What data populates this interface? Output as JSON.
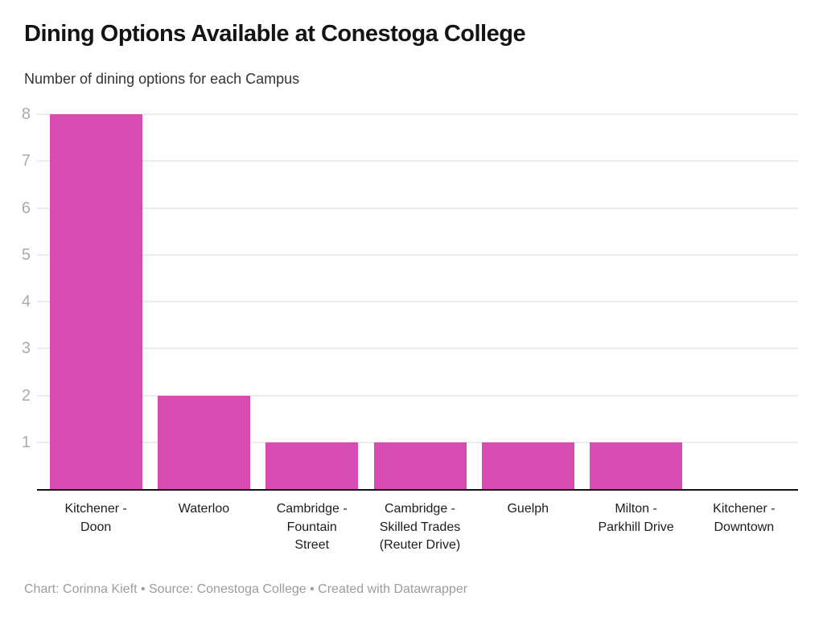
{
  "header": {
    "title": "Dining Options Available at Conestoga College",
    "subtitle": "Number of dining options for each Campus"
  },
  "footer": {
    "text": "Chart: Corinna Kieft • Source: Conestoga College • Created with Datawrapper"
  },
  "colors": {
    "bar": "#d84cb2",
    "gridline": "#ececec",
    "baseline": "#131313",
    "ytick_label": "#ababab",
    "category_label": "#1d1d1d",
    "footer_text": "#9c9c9c",
    "background": "#ffffff"
  },
  "chart_data": {
    "type": "bar",
    "title": "Dining Options Available at Conestoga College",
    "subtitle": "Number of dining options for each Campus",
    "categories": [
      "Kitchener - Doon",
      "Waterloo",
      "Cambridge - Fountain Street",
      "Cambridge - Skilled Trades (Reuter Drive)",
      "Guelph",
      "Milton - Parkhill Drive",
      "Kitchener - Downtown"
    ],
    "category_label_lines": [
      "Kitchener -\nDoon",
      "Waterloo",
      "Cambridge -\nFountain\nStreet",
      "Cambridge -\nSkilled Trades\n(Reuter Drive)",
      "Guelph",
      "Milton -\nParkhill Drive",
      "Kitchener -\nDowntown"
    ],
    "values": [
      8,
      2,
      1,
      1,
      1,
      1,
      0
    ],
    "xlabel": "",
    "ylabel": "",
    "ylim": [
      0,
      8
    ],
    "yticks": [
      1,
      2,
      3,
      4,
      5,
      6,
      7,
      8
    ],
    "grid": "horizontal",
    "legend": "none",
    "bar_color": "#d84cb2"
  }
}
